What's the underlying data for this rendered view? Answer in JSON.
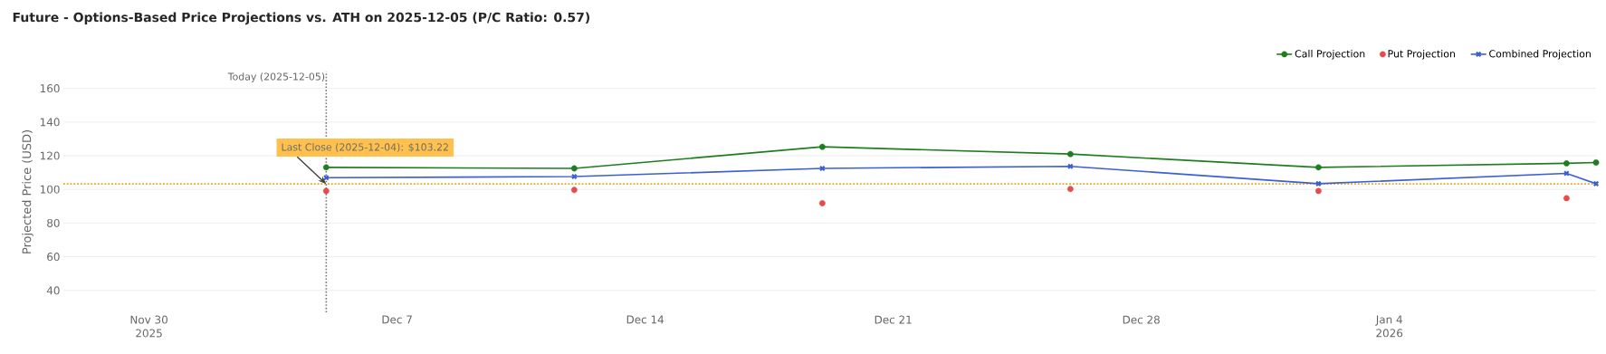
{
  "chart_data": {
    "type": "line",
    "title": "Future - Options-Based Price Projections vs. ATH on 2025-12-05 (P/C Ratio: 0.57)",
    "ylabel": "Projected Price (USD)",
    "series": [
      {
        "name": "Call Projection",
        "color": "#1e7d1e",
        "marker": "circle",
        "x": [
          "2025-12-05",
          "2025-12-12",
          "2025-12-19",
          "2025-12-26",
          "2026-01-02",
          "2026-01-09",
          "2026-01-09T20:00"
        ],
        "values": [
          113.1,
          112.5,
          125.3,
          121.0,
          113.1,
          115.5,
          116.0
        ]
      },
      {
        "name": "Put Projection",
        "type": "scatter",
        "color": "#e84a4a",
        "marker": "circle",
        "x": [
          "2025-12-05",
          "2025-12-12",
          "2025-12-19",
          "2025-12-26",
          "2026-01-02",
          "2026-01-09"
        ],
        "values": [
          99.1,
          99.7,
          91.8,
          100.3,
          99.1,
          94.8
        ]
      },
      {
        "name": "Combined Projection",
        "color": "#3a5fd6",
        "marker": "cross",
        "x": [
          "2025-12-05",
          "2025-12-12",
          "2025-12-19",
          "2025-12-26",
          "2026-01-02",
          "2026-01-09",
          "2026-01-09T20:00"
        ],
        "values": [
          107.0,
          107.6,
          112.5,
          113.7,
          103.4,
          109.5,
          103.4
        ]
      }
    ],
    "xlim": [
      "2025-11-27T14:00",
      "2026-01-09T20:00"
    ],
    "xticks": [
      {
        "value": "2025-11-30",
        "label": "Nov 30\n2025"
      },
      {
        "value": "2025-12-07",
        "label": "Dec 7"
      },
      {
        "value": "2025-12-14",
        "label": "Dec 14"
      },
      {
        "value": "2025-12-21",
        "label": "Dec 21"
      },
      {
        "value": "2025-12-28",
        "label": "Dec 28"
      },
      {
        "value": "2026-01-04",
        "label": "Jan 4\n2026"
      }
    ],
    "ylim": [
      27,
      170
    ],
    "yticks": [
      40,
      60,
      80,
      100,
      120,
      140,
      160
    ],
    "grid": "y",
    "legend": "top right",
    "line_style": "solid",
    "ref_lines": [
      {
        "axis": "x",
        "value": "2025-12-05",
        "label": "Today (2025-12-05)",
        "color": "#777777",
        "line_style": "dotted"
      },
      {
        "axis": "y",
        "value": 103.22,
        "color": "#e6a817",
        "line_style": "dotted"
      }
    ],
    "annotations": [
      {
        "text": "Last Close (2025-12-04): $103.22",
        "x": "2025-12-05",
        "y": 103.22
      }
    ]
  }
}
